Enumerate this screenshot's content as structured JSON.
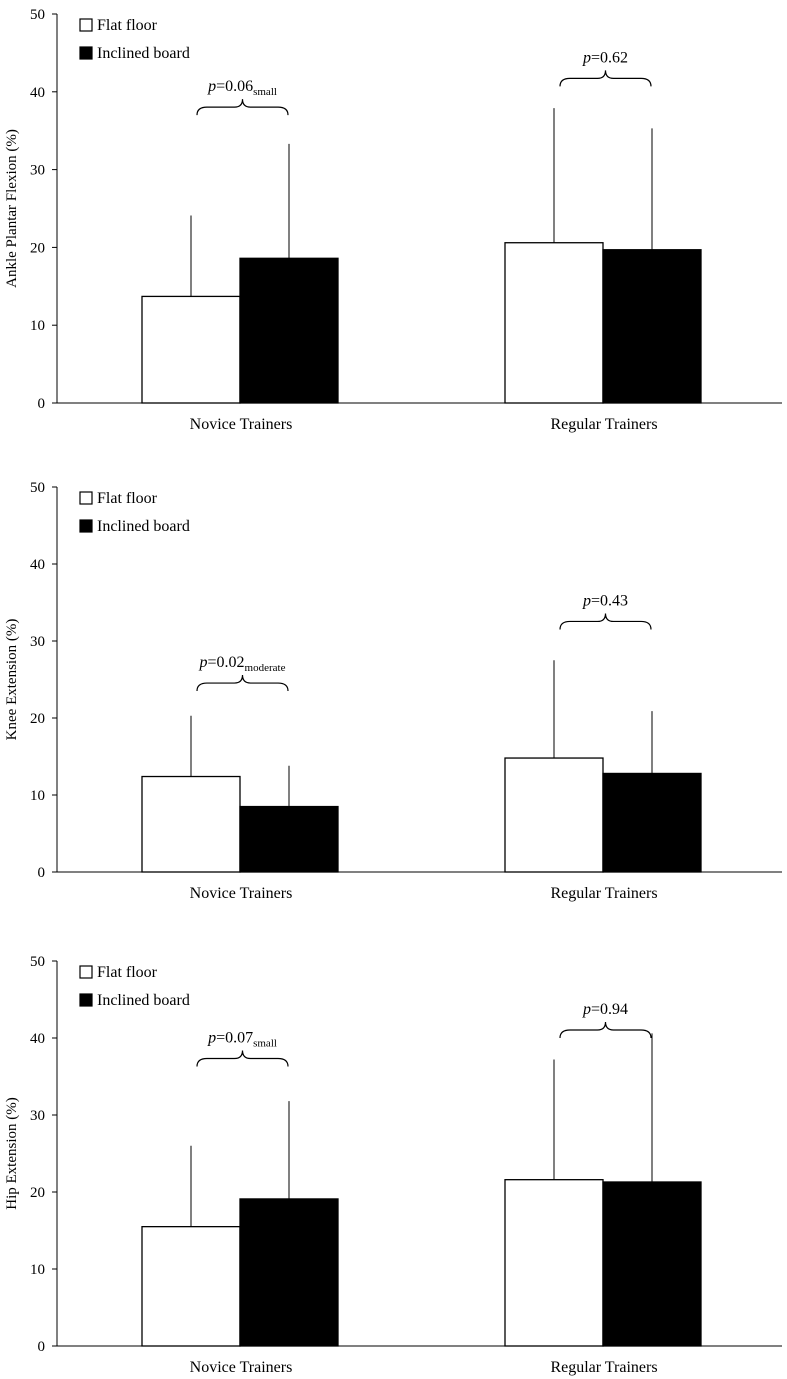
{
  "chart_data": [
    {
      "type": "bar",
      "ylabel": "Ankle Plantar Flexion (%)",
      "ylim": [
        0,
        50
      ],
      "yticks": [
        0,
        10,
        20,
        30,
        40,
        50
      ],
      "categories": [
        "Novice Trainers",
        "Regular Trainers"
      ],
      "series": [
        {
          "name": "Flat floor",
          "color": "#ffffff",
          "values": [
            13.7,
            20.6
          ],
          "errors": [
            10.4,
            17.3
          ]
        },
        {
          "name": "Inclined board",
          "color": "#000000",
          "values": [
            18.6,
            19.7
          ],
          "errors": [
            14.7,
            15.6
          ]
        }
      ],
      "annotations": [
        {
          "category": "Novice Trainers",
          "p_label": "=0.06",
          "p_italic": "p",
          "subscript": "small",
          "bracket_level": 37
        },
        {
          "category": "Regular Trainers",
          "p_label": "=0.62",
          "p_italic": "p",
          "subscript": "",
          "bracket_level": 40.7
        }
      ],
      "legend": "top-left"
    },
    {
      "type": "bar",
      "ylabel": "Knee Extension (%)",
      "ylim": [
        0,
        50
      ],
      "yticks": [
        0,
        10,
        20,
        30,
        40,
        50
      ],
      "categories": [
        "Novice Trainers",
        "Regular Trainers"
      ],
      "series": [
        {
          "name": "Flat floor",
          "color": "#ffffff",
          "values": [
            12.4,
            14.8
          ],
          "errors": [
            7.9,
            12.7
          ]
        },
        {
          "name": "Inclined board",
          "color": "#000000",
          "values": [
            8.5,
            12.8
          ],
          "errors": [
            5.3,
            8.1
          ]
        }
      ],
      "annotations": [
        {
          "category": "Novice Trainers",
          "p_label": "=0.02",
          "p_italic": "p",
          "subscript": "moderate",
          "bracket_level": 23.5
        },
        {
          "category": "Regular Trainers",
          "p_label": "=0.43",
          "p_italic": "p",
          "subscript": "",
          "bracket_level": 31.5
        }
      ],
      "legend": "top-left"
    },
    {
      "type": "bar",
      "ylabel": "Hip Extension (%)",
      "ylim": [
        0,
        50
      ],
      "yticks": [
        0,
        10,
        20,
        30,
        40,
        50
      ],
      "categories": [
        "Novice Trainers",
        "Regular Trainers"
      ],
      "series": [
        {
          "name": "Flat floor",
          "color": "#ffffff",
          "values": [
            15.5,
            21.6
          ],
          "errors": [
            10.5,
            15.6
          ]
        },
        {
          "name": "Inclined board",
          "color": "#000000",
          "values": [
            19.1,
            21.3
          ],
          "errors": [
            12.7,
            19.3
          ]
        }
      ],
      "annotations": [
        {
          "category": "Novice Trainers",
          "p_label": "=0.07",
          "p_italic": "p",
          "subscript": "small",
          "bracket_level": 36.3
        },
        {
          "category": "Regular Trainers",
          "p_label": "=0.94",
          "p_italic": "p",
          "subscript": "",
          "bracket_level": 40
        }
      ],
      "legend": "top-left"
    }
  ]
}
